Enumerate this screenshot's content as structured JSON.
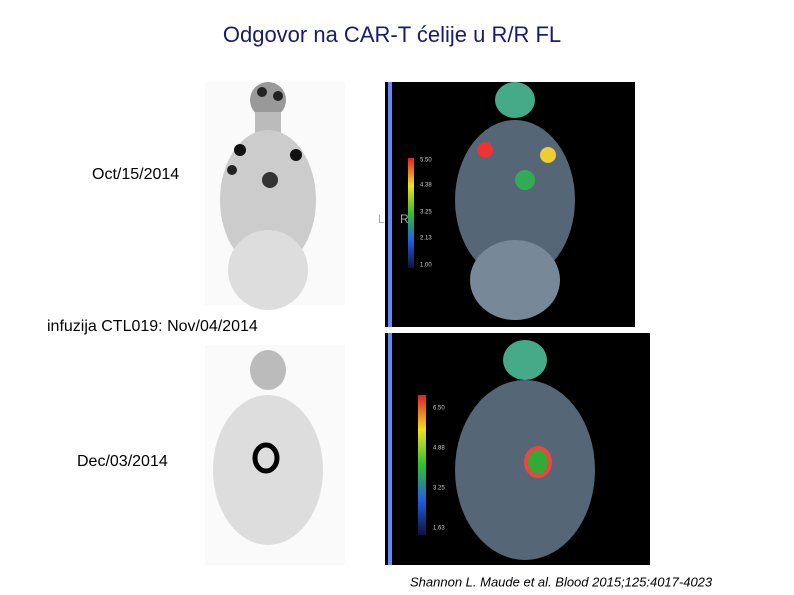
{
  "title": "Odgovor na CAR-T ćelije u R/R FL",
  "scans": [
    {
      "date": "Oct/15/2014",
      "markers": [
        "L",
        "R"
      ],
      "scale": [
        "5.50",
        "4.38",
        "3.25",
        "2.13",
        "1.00"
      ]
    },
    {
      "date": "Dec/03/2014",
      "scale": [
        "6.50",
        "4.88",
        "3.25",
        "1.63"
      ]
    }
  ],
  "infusion": "infuzija CTL019: Nov/04/2014",
  "citation": "Shannon L. Maude et al. Blood 2015;125:4017-4023"
}
